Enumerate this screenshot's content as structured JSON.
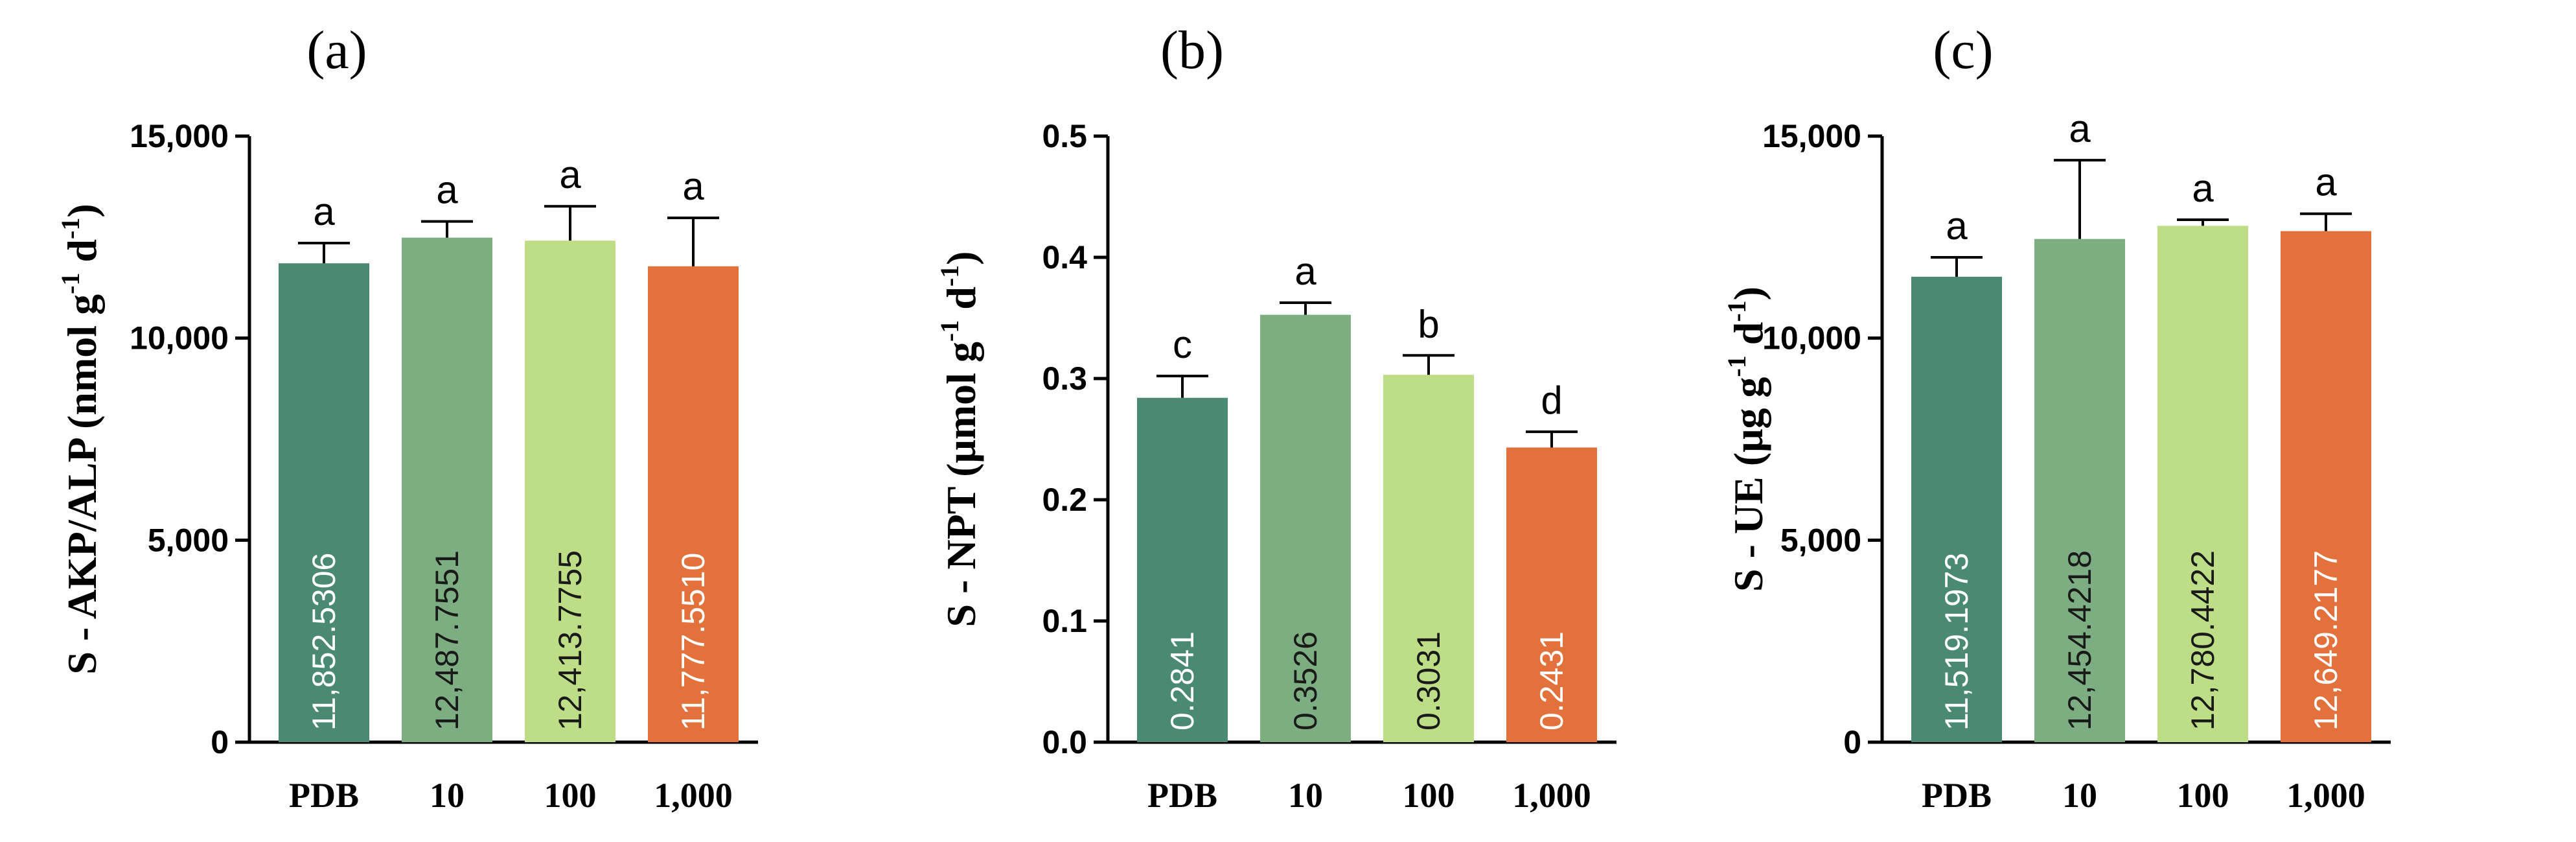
{
  "colors": {
    "pdb": "#4a8a72",
    "c10": "#7cae82",
    "c100": "#bedd87",
    "c1000": "#e3713b",
    "label_light": "#ffffff",
    "label_dark": "#1a1a1a"
  },
  "chart_data": [
    {
      "type": "bar",
      "title": "(a)",
      "ylabel_main": "S - AKP/ALP  (nmol g",
      "ylabel_sup1": "-1",
      "ylabel_mid": " d",
      "ylabel_sup2": "-1",
      "ylabel_end": ")",
      "categories": [
        "PDB",
        "10",
        "100",
        "1,000"
      ],
      "values": [
        11852.5306,
        12487.7551,
        12413.7755,
        11777.551
      ],
      "errors": [
        500,
        400,
        850,
        1200
      ],
      "value_labels": [
        "11,852.5306",
        "12,487.7551",
        "12,413.7755",
        "11,777.5510"
      ],
      "significance": [
        "a",
        "a",
        "a",
        "a"
      ],
      "ylim": [
        0,
        15000
      ],
      "yticks": [
        0,
        5000,
        10000,
        15000
      ],
      "ytick_labels": [
        "0",
        "5,000",
        "10,000",
        "15,000"
      ]
    },
    {
      "type": "bar",
      "title": "(b)",
      "ylabel_main": "S - NPT  (μmol g",
      "ylabel_sup1": "-1",
      "ylabel_mid": " d",
      "ylabel_sup2": "-1",
      "ylabel_end": ")",
      "categories": [
        "PDB",
        "10",
        "100",
        "1,000"
      ],
      "values": [
        0.2841,
        0.3526,
        0.3031,
        0.2431
      ],
      "errors": [
        0.018,
        0.01,
        0.016,
        0.013
      ],
      "value_labels": [
        "0.2841",
        "0.3526",
        "0.3031",
        "0.2431"
      ],
      "significance": [
        "c",
        "a",
        "b",
        "d"
      ],
      "ylim": [
        0,
        0.5
      ],
      "yticks": [
        0,
        0.1,
        0.2,
        0.3,
        0.4,
        0.5
      ],
      "ytick_labels": [
        "0.0",
        "0.1",
        "0.2",
        "0.3",
        "0.4",
        "0.5"
      ]
    },
    {
      "type": "bar",
      "title": "(c)",
      "ylabel_main": "S - UE (μg g",
      "ylabel_sup1": "-1",
      "ylabel_mid": " d",
      "ylabel_sup2": "-1",
      "ylabel_end": ")",
      "categories": [
        "PDB",
        "10",
        "100",
        "1,000"
      ],
      "values": [
        11519.1973,
        12454.4218,
        12780.4422,
        12649.2177
      ],
      "errors": [
        480,
        1950,
        150,
        430
      ],
      "value_labels": [
        "11,519.1973",
        "12,454.4218",
        "12,780.4422",
        "12,649.2177"
      ],
      "significance": [
        "a",
        "a",
        "a",
        "a"
      ],
      "ylim": [
        0,
        15000
      ],
      "yticks": [
        0,
        5000,
        10000,
        15000
      ],
      "ytick_labels": [
        "0",
        "5,000",
        "10,000",
        "15,000"
      ]
    }
  ]
}
